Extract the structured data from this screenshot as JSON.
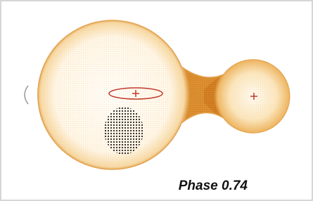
{
  "label": "Phase 0.74"
}
